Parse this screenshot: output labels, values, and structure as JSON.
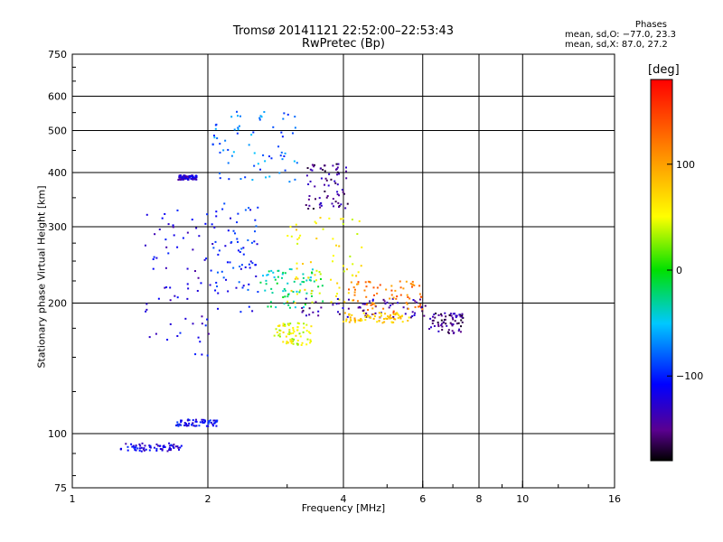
{
  "chart_data": {
    "type": "scatter",
    "title": "Tromsø 20141121 22:52:00–22:53:43",
    "subtitle": "RwPretec (Bp)",
    "xlabel": "Frequency [MHz]",
    "ylabel": "Stationary phase Virtual Height [km]",
    "x_scale": "log",
    "y_scale": "log",
    "xlim": [
      1,
      16
    ],
    "ylim": [
      75,
      750
    ],
    "x_ticks": [
      "1",
      "2",
      "4",
      "6",
      "8",
      "10",
      "16"
    ],
    "x_tick_values": [
      1,
      2,
      4,
      6,
      8,
      10,
      16
    ],
    "x_gridlines": [
      2,
      4,
      6,
      8,
      10
    ],
    "y_ticks": [
      "75",
      "100",
      "200",
      "300",
      "400",
      "500",
      "600",
      "750"
    ],
    "y_tick_values": [
      75,
      100,
      200,
      300,
      400,
      500,
      600,
      750
    ],
    "y_gridlines": [
      100,
      200,
      300,
      400,
      500,
      600
    ],
    "grid": true,
    "phases": {
      "header": "Phases",
      "line_o": "mean, sd,O:  −77.0, 23.3",
      "line_x": "mean, sd,X:  87.0, 27.2"
    },
    "colorbar": {
      "title": "[deg]",
      "ticks": [
        "100",
        "0",
        "−100"
      ],
      "tick_values": [
        100,
        0,
        -100
      ],
      "range": [
        -180,
        180
      ],
      "colormap": "rainbow"
    },
    "clusters": [
      {
        "name": "",
        "x_range": [
          1.28,
          1.75
        ],
        "y_range": [
          91,
          95
        ],
        "phase": -120
      },
      {
        "name": "",
        "x_range": [
          1.7,
          2.1
        ],
        "y_range": [
          104,
          108
        ],
        "phase": -110
      },
      {
        "name": "",
        "x_range": [
          1.45,
          2.05
        ],
        "y_range": [
          150,
          330
        ],
        "phase": -120
      },
      {
        "name": "",
        "x_range": [
          1.72,
          1.9
        ],
        "y_range": [
          385,
          395
        ],
        "phase": -125
      },
      {
        "name": "",
        "x_range": [
          2.05,
          2.6
        ],
        "y_range": [
          190,
          340
        ],
        "phase": -100
      },
      {
        "name": "",
        "x_range": [
          2.05,
          3.2
        ],
        "y_range": [
          380,
          560
        ],
        "phase": -75
      },
      {
        "name": "",
        "x_range": [
          2.6,
          3.6
        ],
        "y_range": [
          195,
          240
        ],
        "phase": -30
      },
      {
        "name": "",
        "x_range": [
          3.0,
          4.4
        ],
        "y_range": [
          200,
          320
        ],
        "phase": 60
      },
      {
        "name": "",
        "x_range": [
          3.2,
          6.2
        ],
        "y_range": [
          185,
          205
        ],
        "phase": -140
      },
      {
        "name": "",
        "x_range": [
          4.0,
          5.6
        ],
        "y_range": [
          180,
          190
        ],
        "phase": 80
      },
      {
        "name": "",
        "x_range": [
          3.3,
          4.1
        ],
        "y_range": [
          330,
          420
        ],
        "phase": -150
      },
      {
        "name": "",
        "x_range": [
          4.1,
          6.0
        ],
        "y_range": [
          190,
          225
        ],
        "phase": 120
      },
      {
        "name": "",
        "x_range": [
          6.2,
          7.4
        ],
        "y_range": [
          170,
          190
        ],
        "phase": -150
      },
      {
        "name": "",
        "x_range": [
          2.8,
          3.4
        ],
        "y_range": [
          160,
          180
        ],
        "phase": 50
      }
    ]
  }
}
